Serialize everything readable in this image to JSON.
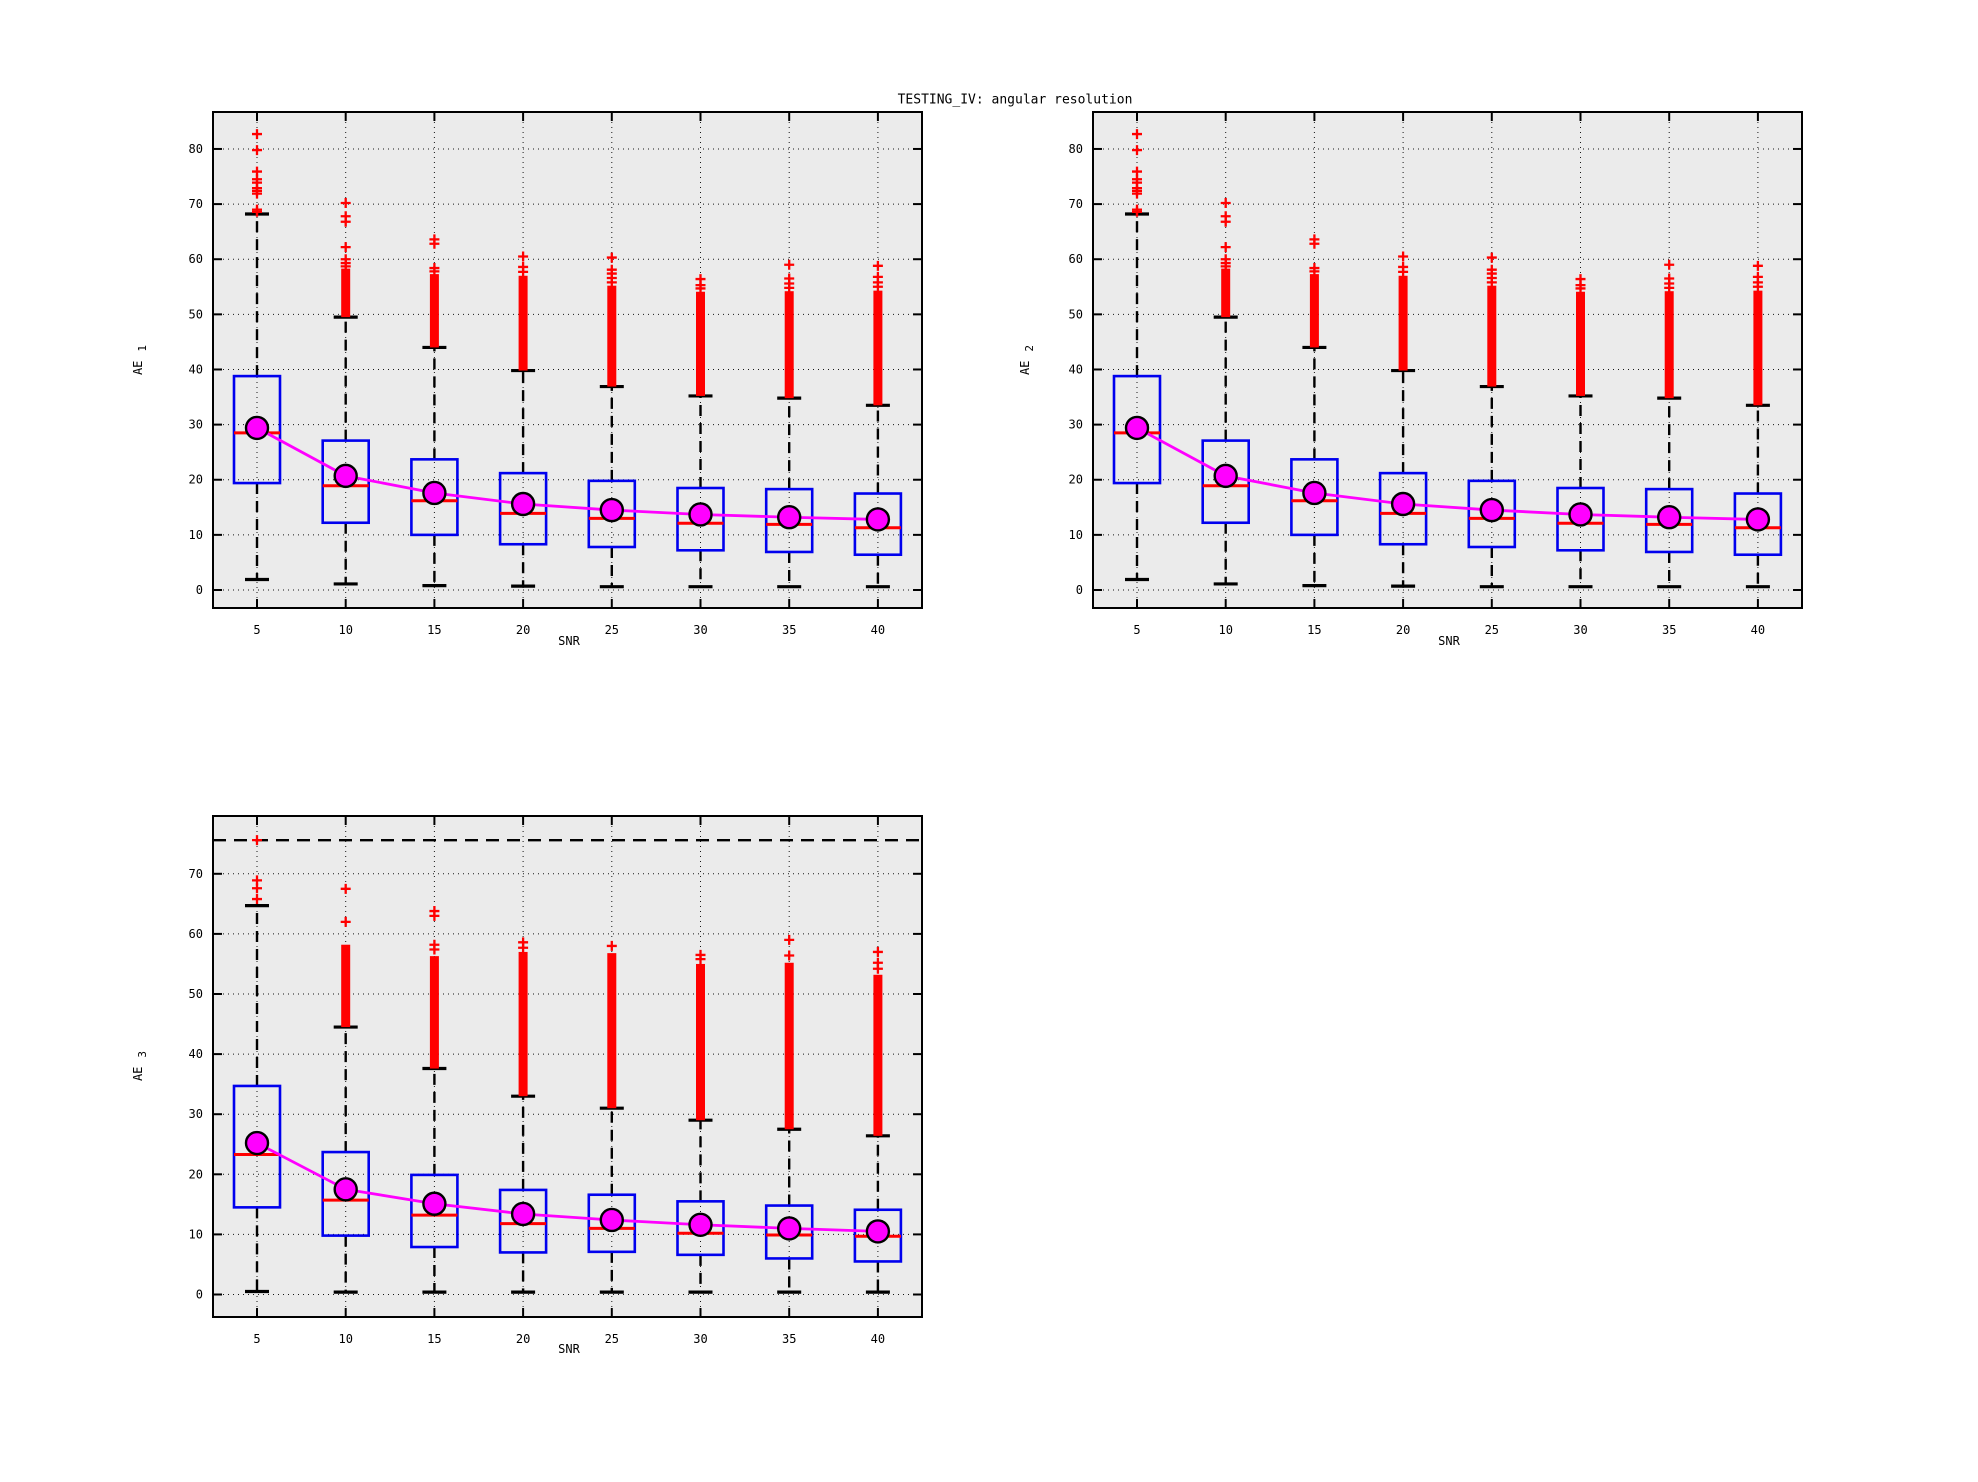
{
  "title": "TESTING_IV: angular resolution",
  "colors": {
    "box": "#0000ee",
    "median": "#ff0000",
    "outlier": "#ff0000",
    "mean_fill": "#ff00ff",
    "mean_line": "#ff00ff",
    "mean_stroke": "#000000",
    "whisker": "#000000",
    "grid": "#000000",
    "plot_bg": "#ebebeb",
    "page_bg": "#ffffff",
    "text": "#000000"
  },
  "chart_data": [
    {
      "type": "boxplot",
      "id": "AE1",
      "ylabel": "AE",
      "ylabel_sub": "1",
      "xlabel": "SNR",
      "categories": [
        5,
        10,
        15,
        20,
        25,
        30,
        35,
        40
      ],
      "yticks": [
        0,
        10,
        20,
        30,
        40,
        50,
        60,
        70,
        80
      ],
      "ylim": [
        -3.3,
        86.7
      ],
      "grid": true,
      "refline": null,
      "boxes": [
        {
          "snr": 5,
          "q1": 19.4,
          "q3": 38.8,
          "median": 28.5,
          "mean": 29.4,
          "whisker_low": 1.9,
          "whisker_high": 68.2,
          "dense_outlier_top": null,
          "outliers": [
            68.6,
            69.0,
            71.9,
            72.4,
            72.9,
            73.9,
            74.5,
            75.9,
            79.8,
            82.7
          ]
        },
        {
          "snr": 10,
          "q1": 12.2,
          "q3": 27.1,
          "median": 18.9,
          "mean": 20.7,
          "whisker_low": 1.1,
          "whisker_high": 49.5,
          "dense_outlier_top": 58.3,
          "outliers": [
            58.7,
            59.3,
            60.0,
            62.2,
            66.8,
            67.8,
            70.2
          ]
        },
        {
          "snr": 15,
          "q1": 10.0,
          "q3": 23.7,
          "median": 16.2,
          "mean": 17.6,
          "whisker_low": 0.8,
          "whisker_high": 44.0,
          "dense_outlier_top": 57.3,
          "outliers": [
            57.8,
            58.4,
            62.8,
            63.6
          ]
        },
        {
          "snr": 20,
          "q1": 8.3,
          "q3": 21.2,
          "median": 13.9,
          "mean": 15.6,
          "whisker_low": 0.7,
          "whisker_high": 39.8,
          "dense_outlier_top": 57.0,
          "outliers": [
            57.7,
            58.6,
            60.5
          ]
        },
        {
          "snr": 25,
          "q1": 7.8,
          "q3": 19.8,
          "median": 13.0,
          "mean": 14.5,
          "whisker_low": 0.6,
          "whisker_high": 36.9,
          "dense_outlier_top": 55.2,
          "outliers": [
            55.8,
            56.6,
            57.4,
            58.1,
            60.3
          ]
        },
        {
          "snr": 30,
          "q1": 7.2,
          "q3": 18.5,
          "median": 12.1,
          "mean": 13.7,
          "whisker_low": 0.6,
          "whisker_high": 35.2,
          "dense_outlier_top": 54.1,
          "outliers": [
            54.7,
            55.3,
            56.4
          ]
        },
        {
          "snr": 35,
          "q1": 6.9,
          "q3": 18.3,
          "median": 11.9,
          "mean": 13.2,
          "whisker_low": 0.6,
          "whisker_high": 34.8,
          "dense_outlier_top": 54.2,
          "outliers": [
            54.8,
            55.6,
            56.5,
            59.0
          ]
        },
        {
          "snr": 40,
          "q1": 6.4,
          "q3": 17.5,
          "median": 11.3,
          "mean": 12.8,
          "whisker_low": 0.6,
          "whisker_high": 33.5,
          "dense_outlier_top": 54.3,
          "outliers": [
            55.0,
            55.8,
            56.8,
            58.8
          ]
        }
      ]
    },
    {
      "type": "boxplot",
      "id": "AE2",
      "ylabel": "AE",
      "ylabel_sub": "2",
      "xlabel": "SNR",
      "categories": [
        5,
        10,
        15,
        20,
        25,
        30,
        35,
        40
      ],
      "yticks": [
        0,
        10,
        20,
        30,
        40,
        50,
        60,
        70,
        80
      ],
      "ylim": [
        -3.3,
        86.7
      ],
      "grid": true,
      "refline": null,
      "boxes": [
        {
          "snr": 5,
          "q1": 19.4,
          "q3": 38.8,
          "median": 28.5,
          "mean": 29.4,
          "whisker_low": 1.9,
          "whisker_high": 68.2,
          "dense_outlier_top": null,
          "outliers": [
            68.6,
            69.0,
            71.9,
            72.4,
            72.9,
            73.9,
            74.5,
            75.9,
            79.8,
            82.7
          ]
        },
        {
          "snr": 10,
          "q1": 12.2,
          "q3": 27.1,
          "median": 18.9,
          "mean": 20.7,
          "whisker_low": 1.1,
          "whisker_high": 49.5,
          "dense_outlier_top": 58.3,
          "outliers": [
            58.7,
            59.3,
            60.0,
            62.2,
            66.8,
            67.8,
            70.2
          ]
        },
        {
          "snr": 15,
          "q1": 10.0,
          "q3": 23.7,
          "median": 16.2,
          "mean": 17.6,
          "whisker_low": 0.8,
          "whisker_high": 44.0,
          "dense_outlier_top": 57.3,
          "outliers": [
            57.8,
            58.4,
            62.8,
            63.6
          ]
        },
        {
          "snr": 20,
          "q1": 8.3,
          "q3": 21.2,
          "median": 13.9,
          "mean": 15.6,
          "whisker_low": 0.7,
          "whisker_high": 39.8,
          "dense_outlier_top": 57.0,
          "outliers": [
            57.7,
            58.6,
            60.5
          ]
        },
        {
          "snr": 25,
          "q1": 7.8,
          "q3": 19.8,
          "median": 13.0,
          "mean": 14.5,
          "whisker_low": 0.6,
          "whisker_high": 36.9,
          "dense_outlier_top": 55.2,
          "outliers": [
            55.8,
            56.6,
            57.4,
            58.1,
            60.3
          ]
        },
        {
          "snr": 30,
          "q1": 7.2,
          "q3": 18.5,
          "median": 12.1,
          "mean": 13.7,
          "whisker_low": 0.6,
          "whisker_high": 35.2,
          "dense_outlier_top": 54.1,
          "outliers": [
            54.7,
            55.3,
            56.4
          ]
        },
        {
          "snr": 35,
          "q1": 6.9,
          "q3": 18.3,
          "median": 11.9,
          "mean": 13.2,
          "whisker_low": 0.6,
          "whisker_high": 34.8,
          "dense_outlier_top": 54.2,
          "outliers": [
            54.8,
            55.6,
            56.5,
            59.0
          ]
        },
        {
          "snr": 40,
          "q1": 6.4,
          "q3": 17.5,
          "median": 11.3,
          "mean": 12.8,
          "whisker_low": 0.6,
          "whisker_high": 33.5,
          "dense_outlier_top": 54.3,
          "outliers": [
            55.0,
            55.8,
            56.8,
            58.8
          ]
        }
      ]
    },
    {
      "type": "boxplot",
      "id": "AE3",
      "ylabel": "AE",
      "ylabel_sub": "3",
      "xlabel": "SNR",
      "categories": [
        5,
        10,
        15,
        20,
        25,
        30,
        35,
        40
      ],
      "yticks": [
        0,
        10,
        20,
        30,
        40,
        50,
        60,
        70
      ],
      "ylim": [
        -3.8,
        79.6
      ],
      "grid": true,
      "refline": 75.6,
      "boxes": [
        {
          "snr": 5,
          "q1": 14.5,
          "q3": 34.7,
          "median": 23.3,
          "mean": 25.2,
          "whisker_low": 0.5,
          "whisker_high": 64.7,
          "dense_outlier_top": null,
          "outliers": [
            65.8,
            67.6,
            68.9,
            75.6
          ]
        },
        {
          "snr": 10,
          "q1": 9.8,
          "q3": 23.7,
          "median": 15.7,
          "mean": 17.5,
          "whisker_low": 0.4,
          "whisker_high": 44.5,
          "dense_outlier_top": 58.2,
          "outliers": [
            62.0,
            67.5
          ]
        },
        {
          "snr": 15,
          "q1": 7.9,
          "q3": 19.9,
          "median": 13.2,
          "mean": 15.1,
          "whisker_low": 0.4,
          "whisker_high": 37.6,
          "dense_outlier_top": 56.3,
          "outliers": [
            57.4,
            58.2,
            63.0,
            63.8
          ]
        },
        {
          "snr": 20,
          "q1": 7.0,
          "q3": 17.4,
          "median": 11.8,
          "mean": 13.4,
          "whisker_low": 0.4,
          "whisker_high": 33.0,
          "dense_outlier_top": 57.0,
          "outliers": [
            57.7,
            58.6
          ]
        },
        {
          "snr": 25,
          "q1": 7.1,
          "q3": 16.6,
          "median": 11.0,
          "mean": 12.4,
          "whisker_low": 0.4,
          "whisker_high": 31.0,
          "dense_outlier_top": 56.8,
          "outliers": [
            58.0
          ]
        },
        {
          "snr": 30,
          "q1": 6.6,
          "q3": 15.5,
          "median": 10.2,
          "mean": 11.6,
          "whisker_low": 0.4,
          "whisker_high": 29.0,
          "dense_outlier_top": 55.0,
          "outliers": [
            55.8,
            56.5
          ]
        },
        {
          "snr": 35,
          "q1": 6.0,
          "q3": 14.8,
          "median": 9.9,
          "mean": 11.0,
          "whisker_low": 0.4,
          "whisker_high": 27.5,
          "dense_outlier_top": 55.2,
          "outliers": [
            56.4,
            59.0
          ]
        },
        {
          "snr": 40,
          "q1": 5.5,
          "q3": 14.1,
          "median": 9.7,
          "mean": 10.5,
          "whisker_low": 0.4,
          "whisker_high": 26.4,
          "dense_outlier_top": 53.2,
          "outliers": [
            54.2,
            55.2,
            57.0
          ]
        }
      ]
    }
  ]
}
